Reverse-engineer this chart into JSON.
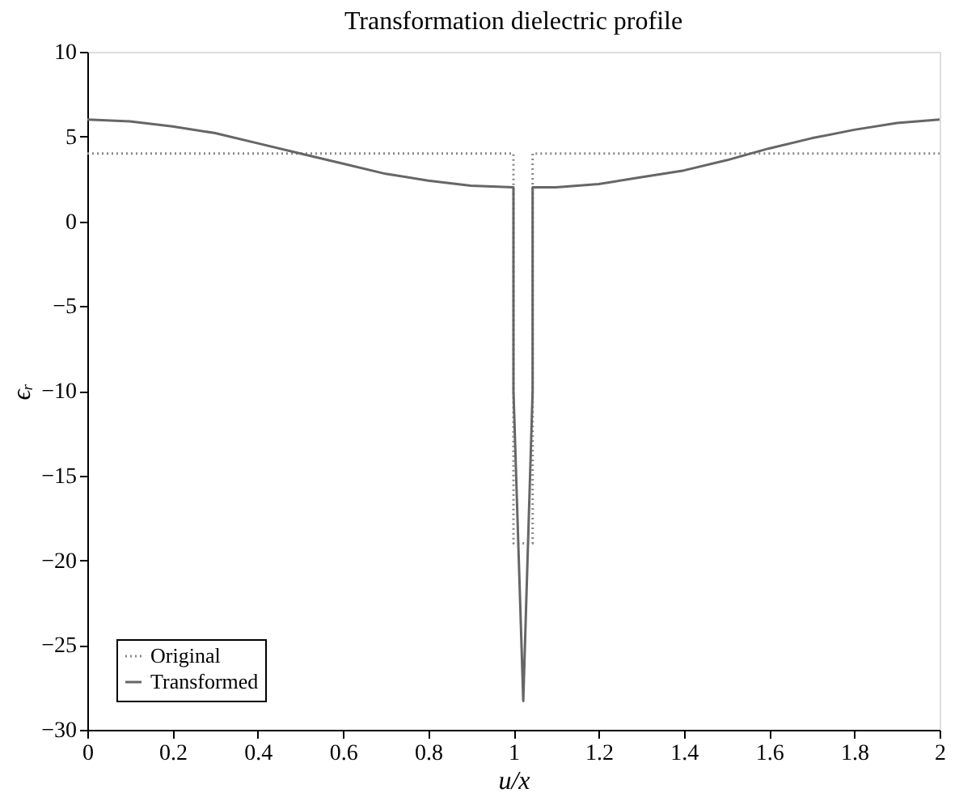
{
  "chart_data": {
    "type": "line",
    "title": "Transformation dielectric profile",
    "xlabel": "u/x",
    "ylabel": "ϵᵣ",
    "xlim": [
      0,
      2
    ],
    "xticks": [
      0,
      0.2,
      0.4,
      0.6,
      0.8,
      1,
      1.2,
      1.4,
      1.6,
      1.8,
      2
    ],
    "ylim": [
      -30,
      10
    ],
    "yticks": [
      -30,
      -25,
      -20,
      -15,
      -10,
      -5,
      0,
      5,
      10
    ],
    "grid": false,
    "legend": "bottom left",
    "marker": "none",
    "series": [
      {
        "name": "Original",
        "color": "#888888",
        "line_style": "dotted",
        "x": [
          0,
          1.0,
          1.0,
          1.045,
          1.045,
          2
        ],
        "values": [
          4,
          4,
          -19,
          -19,
          4,
          4
        ]
      },
      {
        "name": "Transformed",
        "color": "#666666",
        "line_style": "solid",
        "x": [
          0,
          0.1,
          0.2,
          0.3,
          0.4,
          0.5,
          0.6,
          0.7,
          0.8,
          0.9,
          1.0,
          1.0,
          1.023,
          1.045,
          1.045,
          1.1,
          1.2,
          1.3,
          1.4,
          1.5,
          1.6,
          1.7,
          1.8,
          1.9,
          2.0
        ],
        "values": [
          6,
          5.9,
          5.6,
          5.2,
          4.6,
          4.0,
          3.4,
          2.8,
          2.4,
          2.1,
          2.0,
          -10,
          -28.3,
          -10,
          2.0,
          2.0,
          2.2,
          2.6,
          3.0,
          3.6,
          4.3,
          4.9,
          5.4,
          5.8,
          6.0
        ]
      }
    ]
  }
}
